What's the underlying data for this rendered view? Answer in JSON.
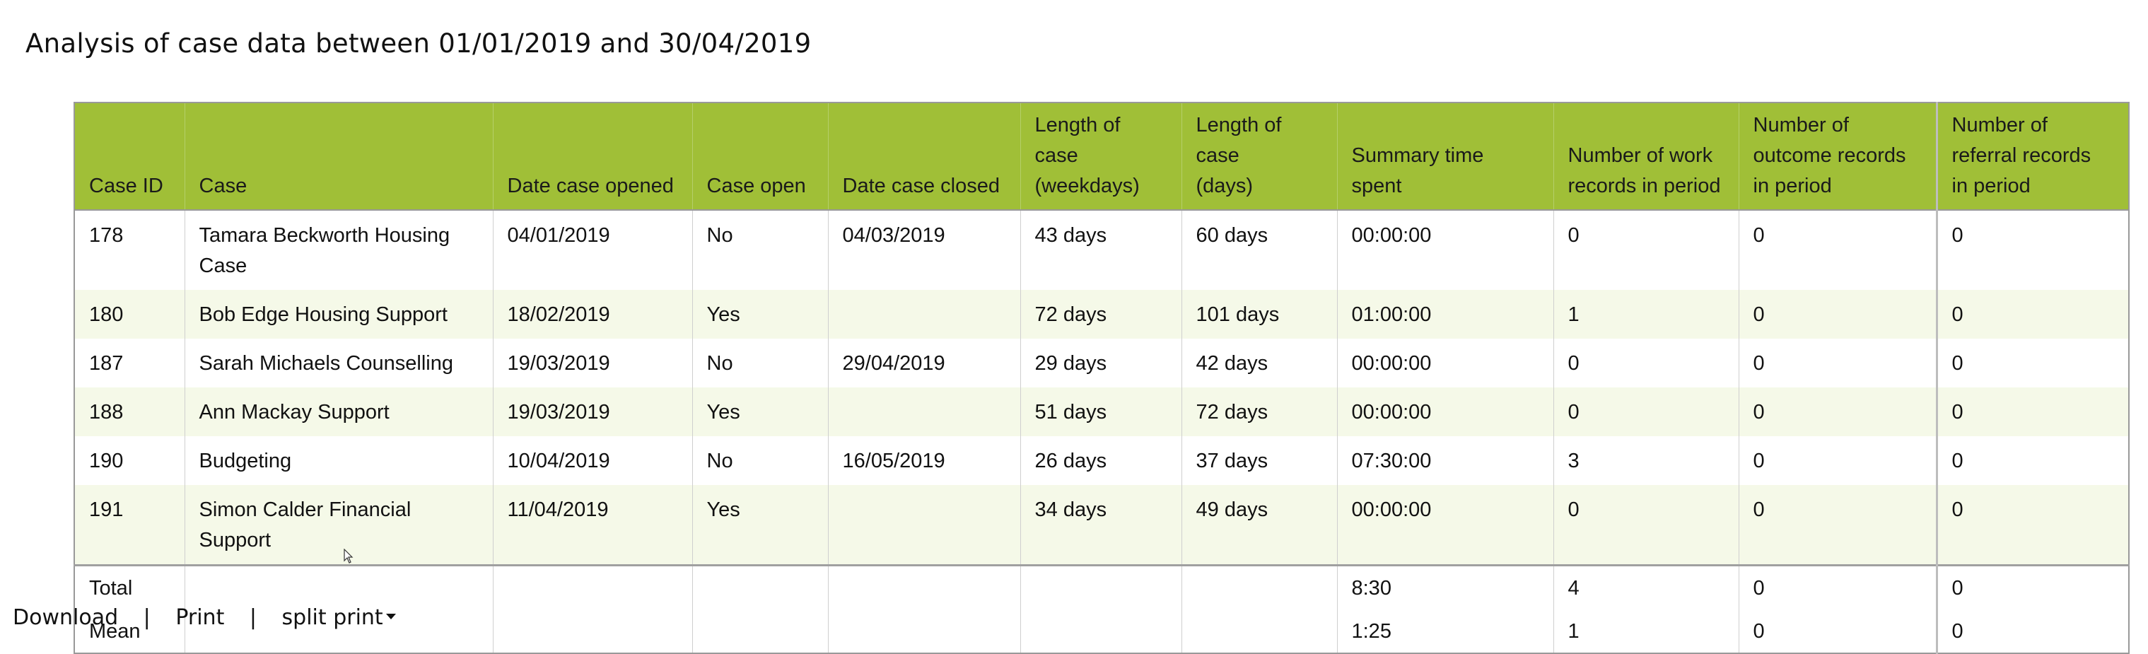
{
  "page": {
    "title": "Analysis of case data between 01/01/2019 and 30/04/2019"
  },
  "table": {
    "headers": [
      "Case ID",
      "Case",
      "Date case opened",
      "Case open",
      "Date case closed",
      "Length of case (weekdays)",
      "Length of case (days)",
      "Summary time spent",
      "Number of work records in period",
      "Number of outcome records in period",
      "Number of referral records in period"
    ],
    "rows": [
      [
        "178",
        "Tamara Beckworth Housing Case",
        "04/01/2019",
        "No",
        "04/03/2019",
        "43 days",
        "60 days",
        "00:00:00",
        "0",
        "0",
        "0"
      ],
      [
        "180",
        "Bob Edge Housing Support",
        "18/02/2019",
        "Yes",
        "",
        "72 days",
        "101 days",
        "01:00:00",
        "1",
        "0",
        "0"
      ],
      [
        "187",
        "Sarah Michaels Counselling",
        "19/03/2019",
        "No",
        "29/04/2019",
        "29 days",
        "42 days",
        "00:00:00",
        "0",
        "0",
        "0"
      ],
      [
        "188",
        "Ann Mackay Support",
        "19/03/2019",
        "Yes",
        "",
        "51 days",
        "72 days",
        "00:00:00",
        "0",
        "0",
        "0"
      ],
      [
        "190",
        "Budgeting",
        "10/04/2019",
        "No",
        "16/05/2019",
        "26 days",
        "37 days",
        "07:30:00",
        "3",
        "0",
        "0"
      ],
      [
        "191",
        "Simon Calder Financial Support",
        "11/04/2019",
        "Yes",
        "",
        "34 days",
        "49 days",
        "00:00:00",
        "0",
        "0",
        "0"
      ]
    ],
    "footer": [
      [
        "Total",
        "",
        "",
        "",
        "",
        "",
        "",
        "8:30",
        "4",
        "0",
        "0"
      ],
      [
        "Mean",
        "",
        "",
        "",
        "",
        "",
        "",
        "1:25",
        "1",
        "0",
        "0"
      ]
    ]
  },
  "actions": {
    "download_label": "Download",
    "separator": "|",
    "print_label": "Print",
    "split_print_label": "split print"
  }
}
